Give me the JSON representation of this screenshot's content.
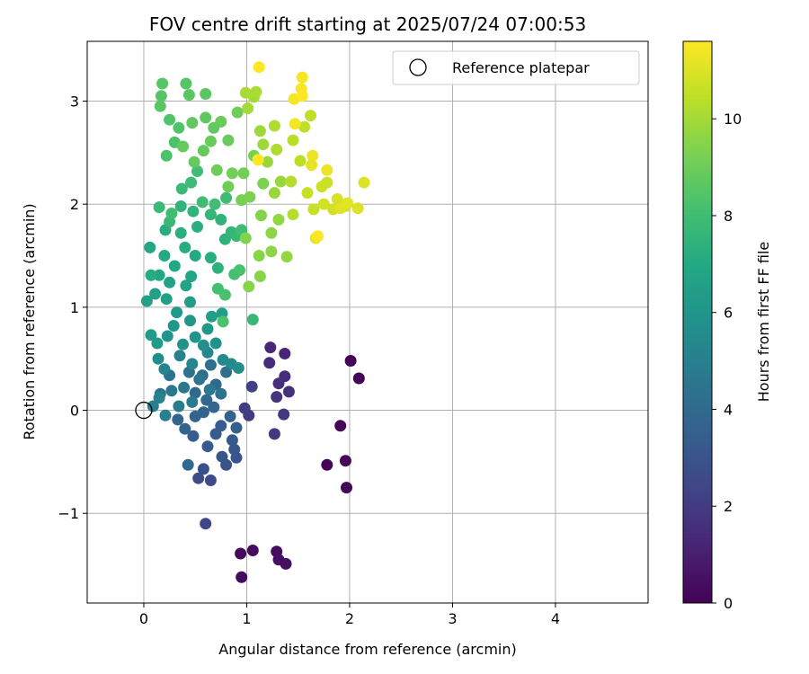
{
  "chart_data": {
    "type": "scatter",
    "title": "FOV centre drift starting at 2025/07/24 07:00:53",
    "xlabel": "Angular distance from reference (arcmin)",
    "ylabel": "Rotation from reference (arcmin)",
    "xlim": [
      -0.55,
      4.9
    ],
    "ylim": [
      -1.87,
      3.58
    ],
    "xticks": [
      0,
      1,
      2,
      3,
      4
    ],
    "yticks": [
      -1,
      0,
      1,
      2,
      3
    ],
    "xtick_labels": [
      "0",
      "1",
      "2",
      "3",
      "4"
    ],
    "ytick_labels": [
      "−1",
      "0",
      "1",
      "2",
      "3"
    ],
    "grid": true,
    "legend": {
      "label": "Reference platepar",
      "placement": "top-right",
      "marker": "open-circle"
    },
    "reference_point": {
      "x": 0,
      "y": 0
    },
    "colorbar": {
      "label": "Hours from first FF file",
      "colormap": "viridis",
      "range": [
        0,
        11.6
      ],
      "ticks": [
        0,
        2,
        4,
        6,
        8,
        10
      ],
      "tick_labels": [
        "0",
        "2",
        "4",
        "6",
        "8",
        "10"
      ]
    },
    "points": [
      [
        2.01,
        0.48,
        0.05
      ],
      [
        2.09,
        0.31,
        0.08
      ],
      [
        1.91,
        -0.15,
        0.12
      ],
      [
        1.78,
        -0.53,
        0.15
      ],
      [
        1.96,
        -0.49,
        0.18
      ],
      [
        1.97,
        -0.75,
        0.2
      ],
      [
        0.94,
        -1.39,
        0.25
      ],
      [
        0.95,
        -1.62,
        0.3
      ],
      [
        1.06,
        -1.36,
        0.35
      ],
      [
        1.29,
        -1.37,
        0.4
      ],
      [
        1.31,
        -1.45,
        0.45
      ],
      [
        1.38,
        -1.49,
        0.5
      ],
      [
        1.37,
        0.55,
        1.2
      ],
      [
        1.23,
        0.61,
        1.3
      ],
      [
        1.22,
        0.46,
        1.4
      ],
      [
        1.37,
        0.33,
        1.5
      ],
      [
        1.31,
        0.26,
        1.55
      ],
      [
        1.41,
        0.18,
        1.6
      ],
      [
        1.29,
        0.13,
        1.7
      ],
      [
        1.36,
        -0.04,
        1.8
      ],
      [
        1.27,
        -0.23,
        1.9
      ],
      [
        1.02,
        -0.05,
        2.0
      ],
      [
        0.98,
        0.02,
        2.1
      ],
      [
        1.05,
        0.23,
        2.2
      ],
      [
        0.6,
        -1.1,
        2.4
      ],
      [
        0.65,
        -0.68,
        2.6
      ],
      [
        0.53,
        -0.66,
        2.7
      ],
      [
        0.58,
        -0.57,
        2.8
      ],
      [
        0.8,
        -0.53,
        2.9
      ],
      [
        0.9,
        -0.46,
        3.0
      ],
      [
        0.76,
        -0.45,
        3.1
      ],
      [
        0.88,
        -0.38,
        3.1
      ],
      [
        0.86,
        -0.29,
        3.2
      ],
      [
        0.7,
        -0.23,
        3.3
      ],
      [
        0.62,
        -0.35,
        3.3
      ],
      [
        0.75,
        -0.15,
        3.4
      ],
      [
        0.48,
        -0.25,
        3.4
      ],
      [
        0.9,
        -0.17,
        3.5
      ],
      [
        0.84,
        -0.06,
        3.6
      ],
      [
        0.58,
        -0.02,
        3.6
      ],
      [
        0.5,
        -0.06,
        3.7
      ],
      [
        0.4,
        -0.18,
        3.7
      ],
      [
        0.33,
        -0.09,
        3.8
      ],
      [
        0.68,
        0.03,
        3.8
      ],
      [
        0.43,
        -0.53,
        3.9
      ],
      [
        0.61,
        0.1,
        3.9
      ],
      [
        0.5,
        0.17,
        4.0
      ],
      [
        0.7,
        0.25,
        4.0
      ],
      [
        0.57,
        0.34,
        4.1
      ],
      [
        0.65,
        0.44,
        4.2
      ],
      [
        0.8,
        0.37,
        4.2
      ],
      [
        0.44,
        0.37,
        4.3
      ],
      [
        0.25,
        0.34,
        4.3
      ],
      [
        0.75,
        0.16,
        4.4
      ],
      [
        0.16,
        0.16,
        4.4
      ],
      [
        0.54,
        0.3,
        4.5
      ],
      [
        0.39,
        0.22,
        4.6
      ],
      [
        0.27,
        0.19,
        4.6
      ],
      [
        0.64,
        0.2,
        4.7
      ],
      [
        0.34,
        0.04,
        4.8
      ],
      [
        0.47,
        0.08,
        4.8
      ],
      [
        0.21,
        -0.05,
        5.0
      ],
      [
        0.09,
        0.04,
        5.0
      ],
      [
        0.15,
        0.12,
        5.1
      ],
      [
        0.35,
        0.53,
        5.1
      ],
      [
        0.2,
        0.4,
        5.2
      ],
      [
        0.47,
        0.45,
        5.3
      ],
      [
        0.62,
        0.56,
        5.4
      ],
      [
        0.77,
        0.49,
        5.5
      ],
      [
        0.85,
        0.45,
        5.5
      ],
      [
        0.92,
        0.41,
        5.6
      ],
      [
        0.14,
        0.5,
        5.6
      ],
      [
        0.58,
        0.63,
        5.7
      ],
      [
        0.7,
        0.65,
        5.8
      ],
      [
        0.38,
        0.64,
        5.9
      ],
      [
        0.23,
        0.72,
        6.0
      ],
      [
        0.5,
        0.71,
        6.0
      ],
      [
        0.29,
        0.82,
        6.1
      ],
      [
        0.45,
        0.87,
        6.1
      ],
      [
        0.62,
        0.79,
        6.2
      ],
      [
        0.32,
        0.95,
        6.2
      ],
      [
        0.07,
        0.73,
        6.3
      ],
      [
        0.13,
        0.65,
        6.3
      ],
      [
        0.45,
        1.05,
        6.4
      ],
      [
        0.66,
        0.91,
        6.4
      ],
      [
        0.76,
        0.94,
        6.5
      ],
      [
        0.22,
        1.08,
        6.5
      ],
      [
        0.11,
        1.13,
        6.6
      ],
      [
        0.03,
        1.06,
        6.6
      ],
      [
        0.25,
        1.24,
        6.7
      ],
      [
        0.41,
        1.21,
        6.7
      ],
      [
        0.15,
        1.31,
        6.8
      ],
      [
        0.46,
        1.3,
        6.8
      ],
      [
        0.3,
        1.4,
        6.9
      ],
      [
        0.06,
        1.58,
        6.9
      ],
      [
        0.2,
        1.5,
        7.0
      ],
      [
        0.5,
        1.5,
        7.0
      ],
      [
        0.07,
        1.31,
        7.1
      ],
      [
        0.4,
        1.58,
        7.1
      ],
      [
        0.65,
        1.48,
        7.2
      ],
      [
        0.21,
        1.75,
        7.2
      ],
      [
        0.36,
        1.72,
        7.3
      ],
      [
        0.52,
        1.78,
        7.3
      ],
      [
        0.72,
        1.38,
        7.4
      ],
      [
        0.79,
        1.66,
        7.4
      ],
      [
        0.75,
        1.85,
        7.5
      ],
      [
        0.48,
        1.93,
        7.5
      ],
      [
        0.36,
        1.98,
        7.5
      ],
      [
        0.85,
        1.73,
        7.6
      ],
      [
        0.65,
        1.9,
        7.6
      ],
      [
        0.9,
        1.69,
        7.7
      ],
      [
        1.06,
        0.88,
        7.7
      ],
      [
        0.25,
        1.83,
        7.7
      ],
      [
        0.15,
        1.97,
        7.8
      ],
      [
        0.37,
        2.15,
        7.8
      ],
      [
        0.46,
        2.21,
        7.9
      ],
      [
        0.57,
        2.02,
        7.9
      ],
      [
        0.8,
        2.06,
        7.9
      ],
      [
        0.27,
        1.91,
        8.0
      ],
      [
        0.52,
        2.32,
        8.0
      ],
      [
        0.69,
        2.0,
        8.0
      ],
      [
        0.95,
        1.75,
        8.0
      ],
      [
        0.88,
        1.32,
        8.1
      ],
      [
        0.72,
        1.18,
        8.1
      ],
      [
        0.79,
        1.12,
        8.2
      ],
      [
        0.93,
        1.36,
        8.2
      ],
      [
        0.77,
        0.86,
        8.3
      ],
      [
        0.22,
        2.47,
        8.3
      ],
      [
        0.3,
        2.6,
        8.3
      ],
      [
        0.34,
        2.74,
        8.4
      ],
      [
        0.25,
        2.82,
        8.4
      ],
      [
        0.17,
        3.05,
        8.5
      ],
      [
        0.18,
        3.17,
        8.5
      ],
      [
        0.41,
        3.17,
        8.5
      ],
      [
        0.44,
        3.06,
        8.6
      ],
      [
        0.6,
        3.07,
        8.6
      ],
      [
        0.16,
        2.95,
        8.6
      ],
      [
        0.47,
        2.79,
        8.7
      ],
      [
        0.6,
        2.84,
        8.7
      ],
      [
        0.68,
        2.74,
        8.7
      ],
      [
        0.38,
        2.56,
        8.8
      ],
      [
        0.49,
        2.41,
        8.8
      ],
      [
        0.58,
        2.52,
        8.8
      ],
      [
        0.65,
        2.61,
        8.9
      ],
      [
        0.75,
        2.8,
        8.9
      ],
      [
        0.82,
        2.62,
        8.9
      ],
      [
        0.91,
        2.89,
        9.0
      ],
      [
        0.71,
        2.33,
        9.0
      ],
      [
        0.82,
        2.17,
        9.0
      ],
      [
        0.86,
        2.3,
        9.1
      ],
      [
        0.97,
        2.3,
        9.1
      ],
      [
        1.07,
        2.47,
        9.2
      ],
      [
        0.95,
        2.04,
        9.2
      ],
      [
        1.03,
        2.07,
        9.3
      ],
      [
        1.16,
        2.2,
        9.3
      ],
      [
        0.99,
        1.67,
        9.4
      ],
      [
        1.14,
        1.89,
        9.4
      ],
      [
        1.12,
        1.5,
        9.5
      ],
      [
        1.13,
        1.3,
        9.5
      ],
      [
        1.02,
        1.2,
        9.5
      ],
      [
        1.24,
        1.72,
        9.6
      ],
      [
        1.24,
        1.54,
        9.6
      ],
      [
        1.31,
        1.85,
        9.7
      ],
      [
        1.39,
        1.49,
        9.7
      ],
      [
        1.27,
        2.11,
        9.8
      ],
      [
        1.33,
        2.22,
        9.8
      ],
      [
        1.2,
        2.41,
        9.8
      ],
      [
        1.16,
        2.58,
        9.9
      ],
      [
        1.13,
        2.71,
        9.9
      ],
      [
        1.01,
        2.93,
        10.0
      ],
      [
        1.07,
        3.04,
        10.0
      ],
      [
        0.99,
        3.08,
        10.1
      ],
      [
        1.09,
        3.09,
        10.1
      ],
      [
        1.27,
        2.76,
        10.2
      ],
      [
        1.29,
        2.53,
        10.2
      ],
      [
        1.43,
        2.22,
        10.3
      ],
      [
        1.45,
        1.9,
        10.3
      ],
      [
        1.52,
        2.42,
        10.4
      ],
      [
        1.45,
        2.62,
        10.4
      ],
      [
        1.56,
        2.75,
        10.5
      ],
      [
        1.62,
        2.86,
        10.5
      ],
      [
        1.59,
        2.11,
        10.6
      ],
      [
        1.65,
        1.95,
        10.6
      ],
      [
        1.73,
        2.17,
        10.7
      ],
      [
        1.78,
        2.21,
        10.7
      ],
      [
        1.75,
        2.0,
        10.8
      ],
      [
        1.84,
        1.95,
        10.8
      ],
      [
        1.88,
        2.05,
        10.9
      ],
      [
        1.96,
        1.98,
        10.9
      ],
      [
        2.08,
        1.96,
        11.0
      ],
      [
        2.14,
        2.21,
        11.0
      ],
      [
        1.98,
        2.01,
        11.1
      ],
      [
        1.91,
        1.96,
        11.1
      ],
      [
        1.67,
        1.67,
        11.2
      ],
      [
        1.63,
        2.38,
        11.2
      ],
      [
        1.78,
        2.33,
        11.3
      ],
      [
        1.64,
        2.47,
        11.3
      ],
      [
        1.47,
        2.78,
        11.4
      ],
      [
        1.46,
        3.02,
        11.4
      ],
      [
        1.53,
        3.12,
        11.5
      ],
      [
        1.54,
        3.23,
        11.5
      ],
      [
        1.12,
        3.33,
        11.6
      ],
      [
        1.11,
        2.43,
        11.6
      ],
      [
        1.69,
        1.69,
        11.6
      ],
      [
        1.54,
        3.05,
        11.6
      ]
    ]
  }
}
